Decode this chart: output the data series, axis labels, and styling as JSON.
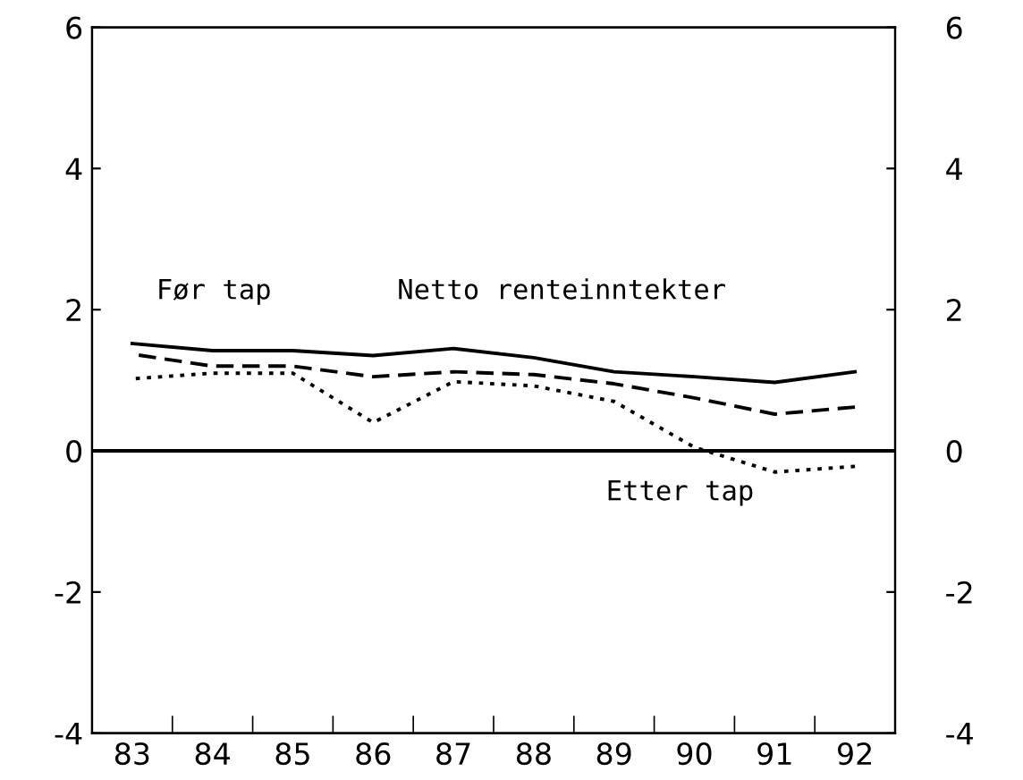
{
  "chart_data": {
    "type": "line",
    "categories": [
      "83",
      "84",
      "85",
      "86",
      "87",
      "88",
      "89",
      "90",
      "91",
      "92"
    ],
    "series": [
      {
        "color": "#000000",
        "line_style": "solid",
        "values": [
          1.52,
          1.42,
          1.42,
          1.35,
          1.45,
          1.32,
          1.12,
          1.05,
          0.97,
          1.12
        ]
      },
      {
        "color": "#000000",
        "line_style": "dashed",
        "values": [
          1.37,
          1.2,
          1.2,
          1.05,
          1.12,
          1.08,
          0.95,
          0.75,
          0.52,
          0.62
        ]
      },
      {
        "color": "#000000",
        "line_style": "dotted",
        "values": [
          1.02,
          1.1,
          1.1,
          0.4,
          0.98,
          0.92,
          0.7,
          0.05,
          -0.3,
          -0.22
        ]
      }
    ],
    "annotations": [
      "Før tap",
      "Netto renteinntekter",
      "Etter tap"
    ],
    "ylim": [
      -4,
      6
    ],
    "yticks": [
      -4,
      -2,
      0,
      2,
      4,
      6
    ],
    "y2lim": [
      -4,
      6
    ],
    "y2ticks": [
      -4,
      -2,
      0,
      2,
      4,
      6
    ],
    "ref_lines": [
      {
        "axis": "y",
        "value": 0,
        "color": "#000000"
      }
    ],
    "grid": false,
    "legend": false,
    "marker": "none"
  }
}
